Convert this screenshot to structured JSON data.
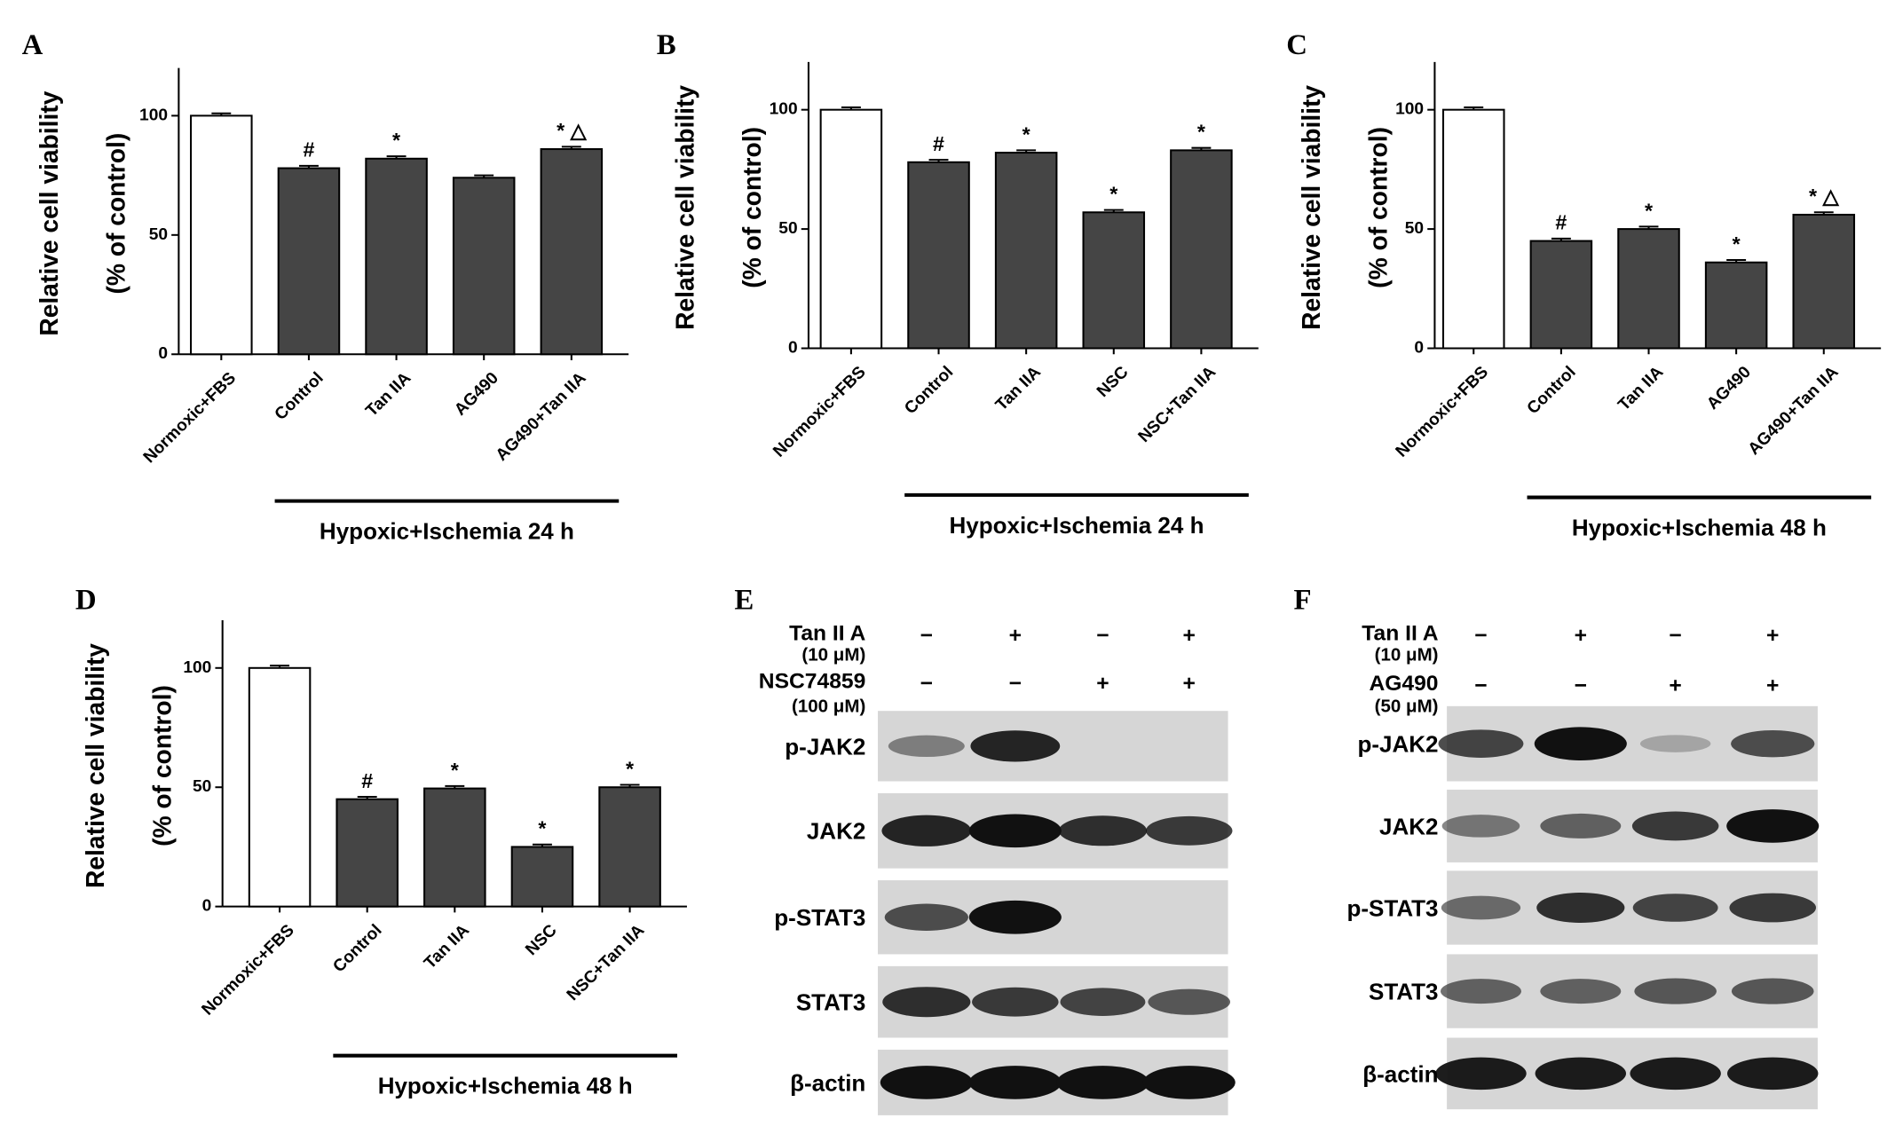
{
  "chart_data": [
    {
      "type": "bar",
      "panel": "A",
      "ylabel": [
        "Relative cell viability",
        "(% of control)"
      ],
      "categories": [
        "Normoxic+FBS",
        "Control",
        "Tan IIA",
        "AG490",
        "AG490+Tan IIA"
      ],
      "values": [
        100,
        78,
        82,
        74,
        86
      ],
      "errors": [
        1,
        1,
        1,
        1,
        1
      ],
      "annotations": [
        null,
        "#",
        "*",
        null,
        "* △"
      ],
      "colors": [
        "#ffffff",
        "#454545",
        "#454545",
        "#454545",
        "#454545"
      ],
      "ylim": [
        0,
        120
      ],
      "yticks": [
        0,
        50,
        100
      ],
      "bracket_label": "Hypoxic+Ischemia 24 h"
    },
    {
      "type": "bar",
      "panel": "B",
      "ylabel": [
        "Relative cell viability",
        "(% of control)"
      ],
      "categories": [
        "Normoxic+FBS",
        "Control",
        "Tan IIA",
        "NSC",
        "NSC+Tan IIA"
      ],
      "values": [
        100,
        78,
        82,
        57,
        83
      ],
      "errors": [
        1,
        1,
        1,
        1,
        1
      ],
      "annotations": [
        null,
        "#",
        "*",
        "*",
        "*"
      ],
      "colors": [
        "#ffffff",
        "#454545",
        "#454545",
        "#454545",
        "#454545"
      ],
      "ylim": [
        0,
        120
      ],
      "yticks": [
        0,
        50,
        100
      ],
      "bracket_label": "Hypoxic+Ischemia 24 h"
    },
    {
      "type": "bar",
      "panel": "C",
      "ylabel": [
        "Relative cell viability",
        "(% of control)"
      ],
      "categories": [
        "Normoxic+FBS",
        "Control",
        "Tan IIA",
        "AG490",
        "AG490+Tan IIA"
      ],
      "values": [
        100,
        45,
        50,
        36,
        56
      ],
      "errors": [
        1,
        1,
        1,
        1,
        1
      ],
      "annotations": [
        null,
        "#",
        "*",
        "*",
        "* △"
      ],
      "colors": [
        "#ffffff",
        "#454545",
        "#454545",
        "#454545",
        "#454545"
      ],
      "ylim": [
        0,
        120
      ],
      "yticks": [
        0,
        50,
        100
      ],
      "bracket_label": "Hypoxic+Ischemia 48 h"
    },
    {
      "type": "bar",
      "panel": "D",
      "ylabel": [
        "Relative cell viability",
        "(% of control)"
      ],
      "categories": [
        "Normoxic+FBS",
        "Control",
        "Tan IIA",
        "NSC",
        "NSC+Tan IIA"
      ],
      "values": [
        100,
        45,
        49.5,
        25,
        50
      ],
      "errors": [
        1,
        1,
        1,
        1,
        1
      ],
      "annotations": [
        null,
        "#",
        "*",
        "*",
        "*"
      ],
      "colors": [
        "#ffffff",
        "#454545",
        "#454545",
        "#454545",
        "#454545"
      ],
      "ylim": [
        0,
        120
      ],
      "yticks": [
        0,
        50,
        100
      ],
      "bracket_label": "Hypoxic+Ischemia 48 h"
    }
  ],
  "blots": [
    {
      "panel": "E",
      "treatments": [
        {
          "label": "Tan II A",
          "sublabel": "(10 μM)",
          "signs": [
            "−",
            "+",
            "−",
            "+"
          ]
        },
        {
          "label": "NSC74859",
          "sublabel": "(100 μM)",
          "signs": [
            "−",
            "−",
            "+",
            "+"
          ]
        }
      ],
      "bands": [
        "p-JAK2",
        "JAK2",
        "p-STAT3",
        "STAT3",
        "β-actin"
      ]
    },
    {
      "panel": "F",
      "treatments": [
        {
          "label": "Tan II A",
          "sublabel": "(10 μM)",
          "signs": [
            "−",
            "+",
            "−",
            "+"
          ]
        },
        {
          "label": "AG490",
          "sublabel": "(50 μM)",
          "signs": [
            "−",
            "−",
            "+",
            "+"
          ]
        }
      ],
      "bands": [
        "p-JAK2",
        "JAK2",
        "p-STAT3",
        "STAT3",
        "β-actin"
      ]
    }
  ]
}
